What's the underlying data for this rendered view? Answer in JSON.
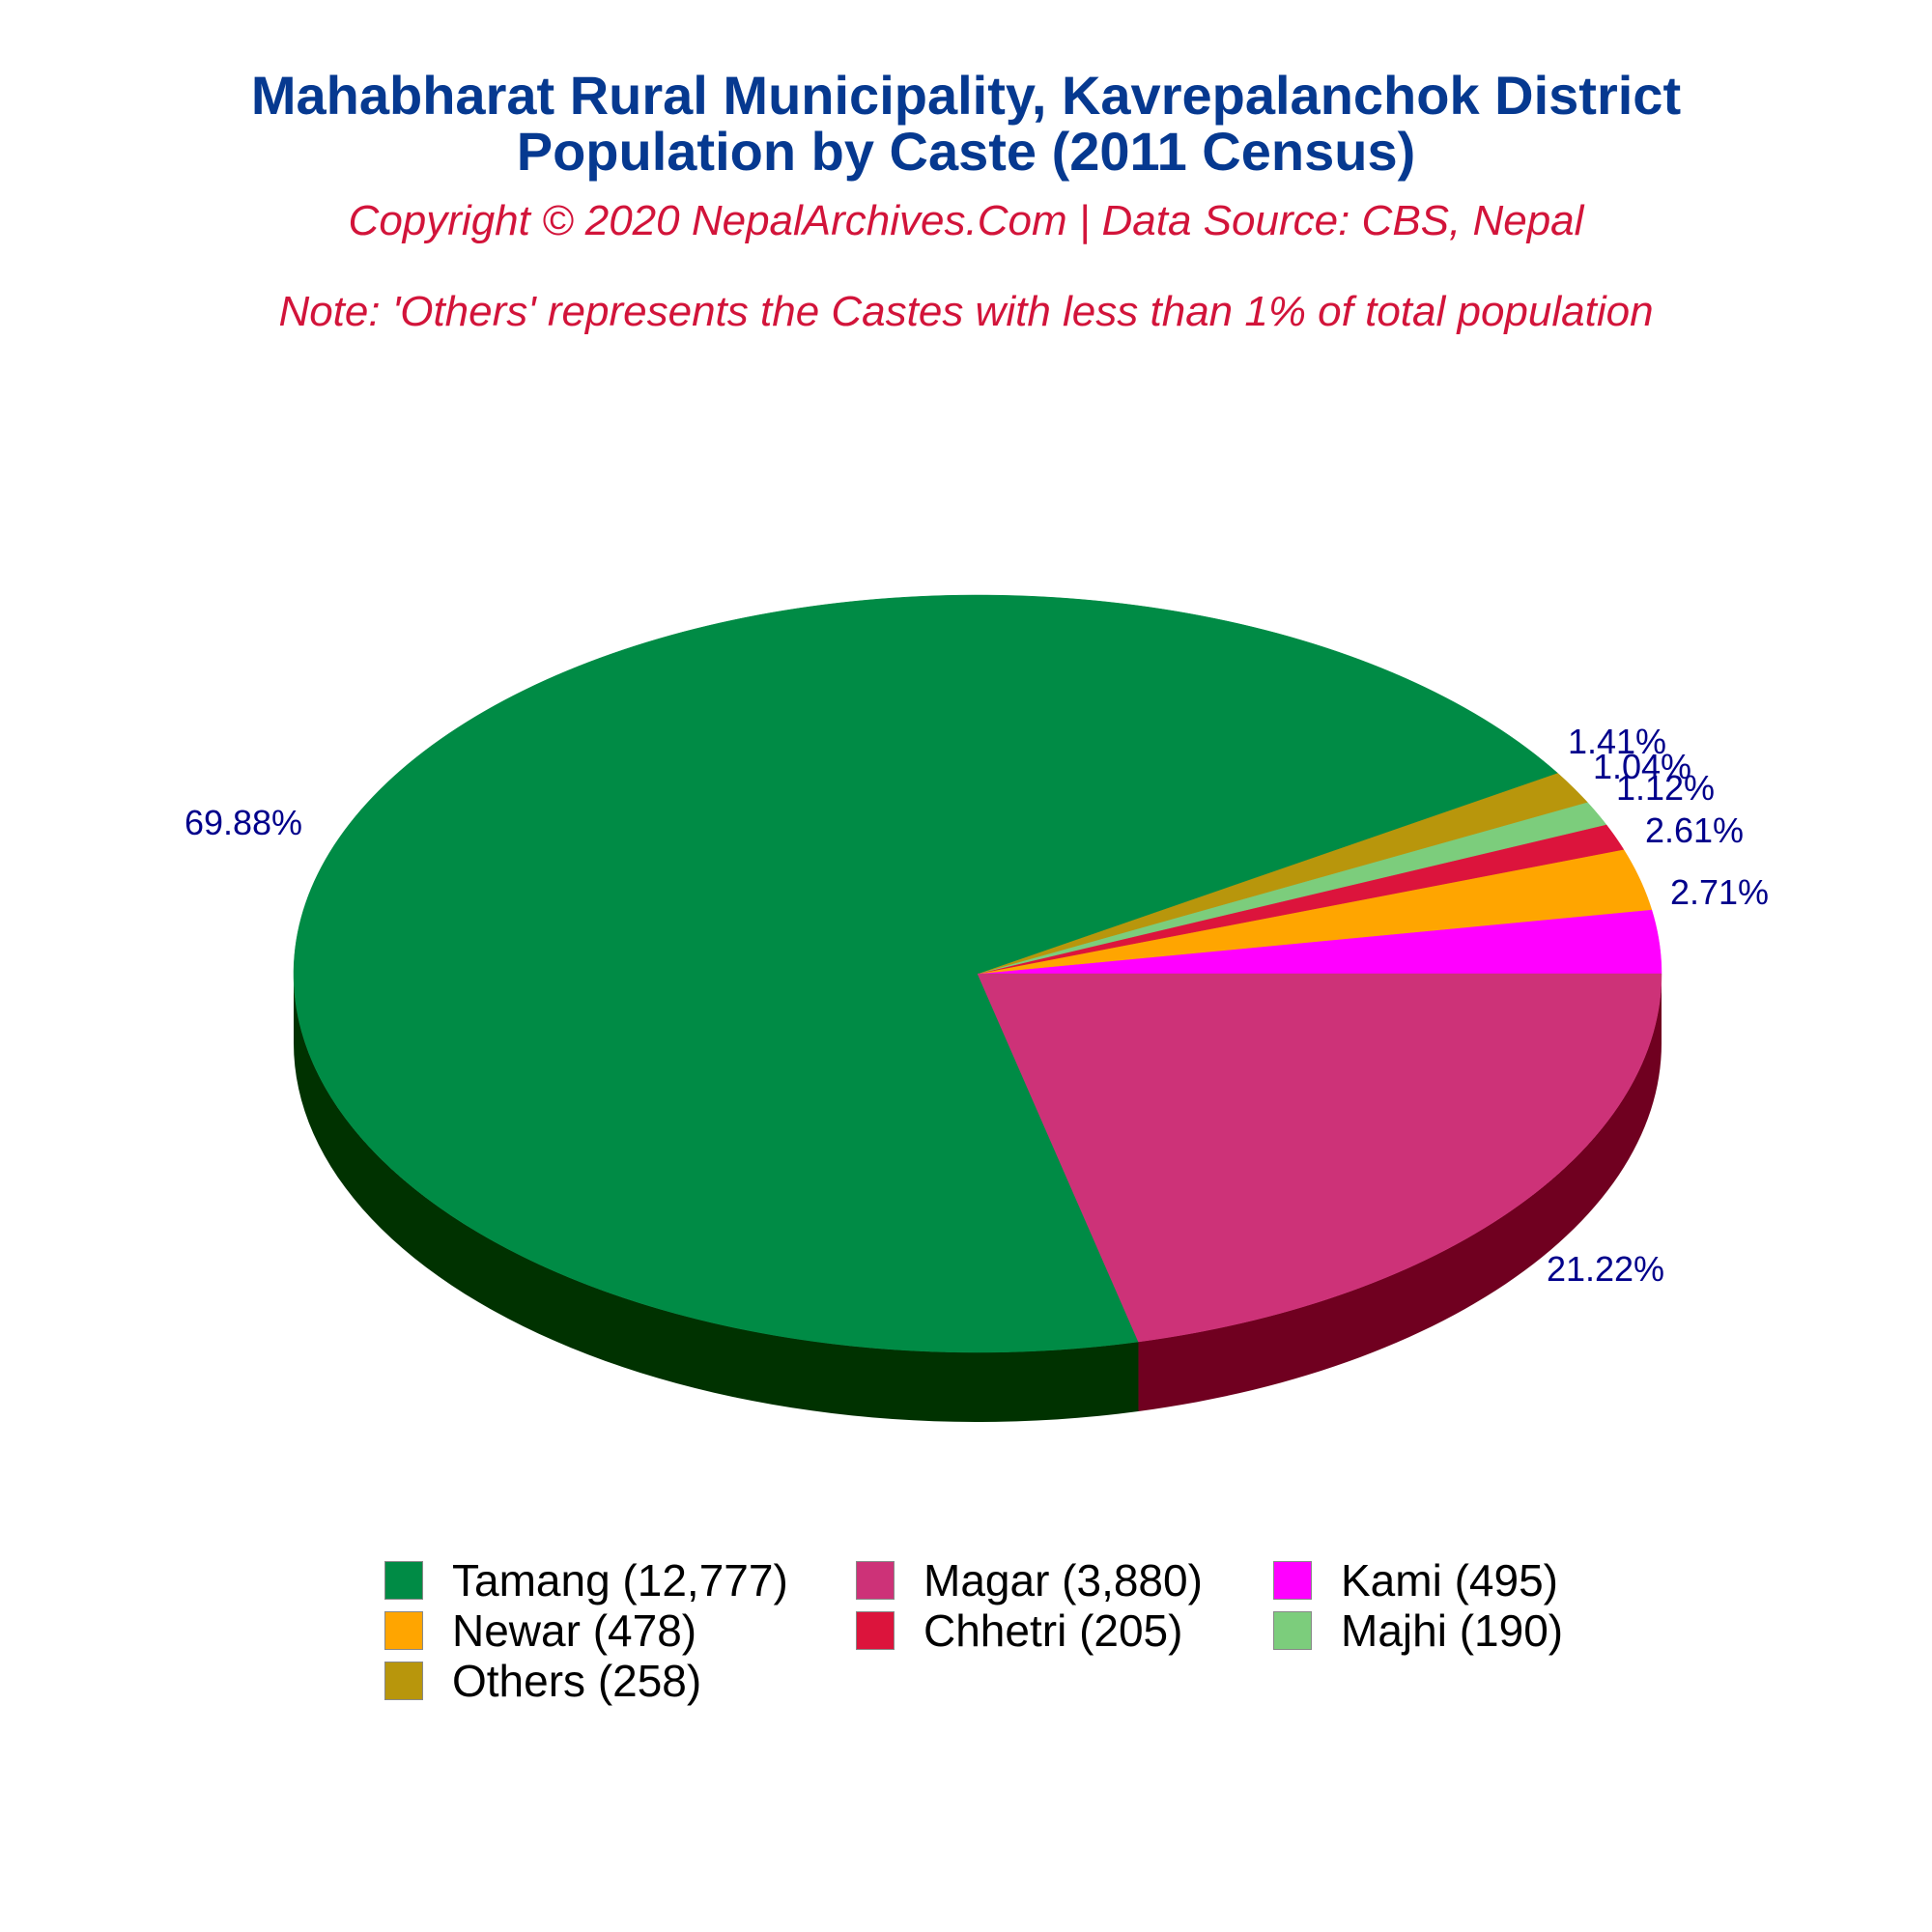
{
  "header": {
    "title_line1": "Mahabharat Rural Municipality, Kavrepalanchok District",
    "title_line2": "Population by Caste (2011 Census)",
    "copyright": "Copyright © 2020 NepalArchives.Com | Data Source: CBS, Nepal",
    "note": "Note: 'Others' represents the Castes with less than 1% of total population"
  },
  "chart_data": {
    "type": "pie",
    "style": "3d",
    "categories": [
      "Tamang",
      "Magar",
      "Kami",
      "Newar",
      "Chhetri",
      "Majhi",
      "Others"
    ],
    "values": [
      12777,
      3880,
      495,
      478,
      205,
      190,
      258
    ],
    "percent_labels": [
      "69.88%",
      "21.22%",
      "2.71%",
      "2.61%",
      "1.12%",
      "1.04%",
      "1.41%"
    ],
    "legend_labels": [
      "Tamang (12,777)",
      "Magar (3,880)",
      "Kami (495)",
      "Newar (478)",
      "Chhetri (205)",
      "Majhi (190)",
      "Others (258)"
    ],
    "colors": [
      "#008B45",
      "#CD3278",
      "#FF00FF",
      "#FFA500",
      "#DC143C",
      "#7CCD7C",
      "#B8960C"
    ],
    "side_colors": [
      "#003200",
      "#700020",
      "#800080",
      "#8B5A00",
      "#700010",
      "#2E6B2E",
      "#5C4A00"
    ],
    "label_color": "#00008B",
    "legend_position": "bottom"
  }
}
